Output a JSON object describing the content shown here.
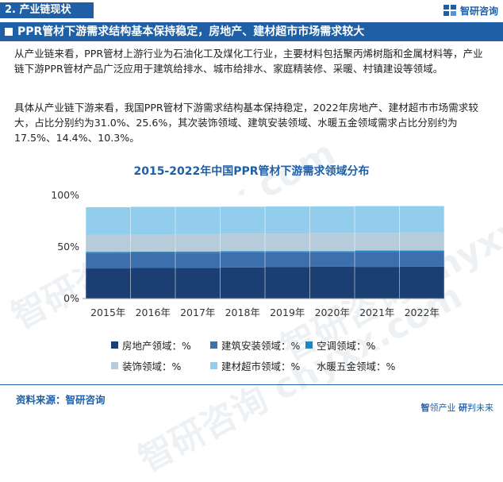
{
  "header": {
    "section_label": "2. 产业链现状",
    "brand_name": "智研咨询",
    "brand_icon": "brand-logo-icon"
  },
  "banner": {
    "title": "PPR管材下游需求结构基本保持稳定，房地产、建材超市市场需求较大"
  },
  "body": {
    "paragraph1": "从产业链来看，PPR管材上游行业为石油化工及煤化工行业，主要材料包括聚丙烯树脂和金属材料等，产业链下游PPR管材产品广泛应用于建筑给排水、城市给排水、家庭精装修、采暖、村镇建设等领域。",
    "paragraph2": "具体从产业链下游来看，我国PPR管材下游需求结构基本保持稳定，2022年房地产、建材超市市场需求较大，占比分别约为31.0%、25.6%，其次装饰领域、建筑安装领域、水暖五金领域需求占比分别约为17.5%、14.4%、10.3%。"
  },
  "watermark": {
    "text": "智研咨询 chyxx.com"
  },
  "colors": {
    "brand": "#1f5fa6",
    "real_estate": "#1b3f73",
    "construction": "#3d6fad",
    "air_conditioning": "#1f86c6",
    "decoration": "#b6ccdb",
    "building_supermarket": "#93cdee",
    "hardware": "#ffffff"
  },
  "chart_data": {
    "type": "bar",
    "stacked": true,
    "title": "2015-2022年中国PPR管材下游需求领域分布",
    "categories": [
      "2015年",
      "2016年",
      "2017年",
      "2018年",
      "2019年",
      "2020年",
      "2021年",
      "2022年"
    ],
    "y_ticks": [
      "0%",
      "50%",
      "100%"
    ],
    "ylim": [
      0,
      100
    ],
    "legend_position": "bottom",
    "series": [
      {
        "name": "房地产领域：%",
        "color_key": "real_estate",
        "values": [
          29.2,
          29.6,
          29.8,
          30.2,
          30.4,
          30.8,
          30.7,
          31.0
        ]
      },
      {
        "name": "建筑安装领域：%",
        "color_key": "construction",
        "values": [
          14.8,
          14.6,
          14.6,
          14.6,
          14.4,
          14.0,
          14.6,
          14.4
        ]
      },
      {
        "name": "空调领域：%",
        "color_key": "air_conditioning",
        "values": [
          1.3,
          1.3,
          1.2,
          1.2,
          1.2,
          1.2,
          1.2,
          1.2
        ]
      },
      {
        "name": "装饰领域：%",
        "color_key": "decoration",
        "values": [
          16.6,
          16.5,
          16.8,
          16.9,
          17.0,
          17.6,
          17.3,
          17.5
        ]
      },
      {
        "name": "建材超市领域：%",
        "color_key": "building_supermarket",
        "values": [
          26.6,
          27.0,
          26.5,
          26.2,
          26.2,
          25.8,
          25.8,
          25.6
        ]
      },
      {
        "name": "水暖五金领域：%",
        "color_key": "hardware",
        "values": [
          11.5,
          11.0,
          11.1,
          10.9,
          10.8,
          10.6,
          10.4,
          10.3
        ]
      }
    ]
  },
  "footer": {
    "source_label": "资料来源：智研咨询",
    "slogan_bold1": "智",
    "slogan_rest1": "领产业",
    "slogan_bold2": "研",
    "slogan_rest2": "判未来"
  }
}
